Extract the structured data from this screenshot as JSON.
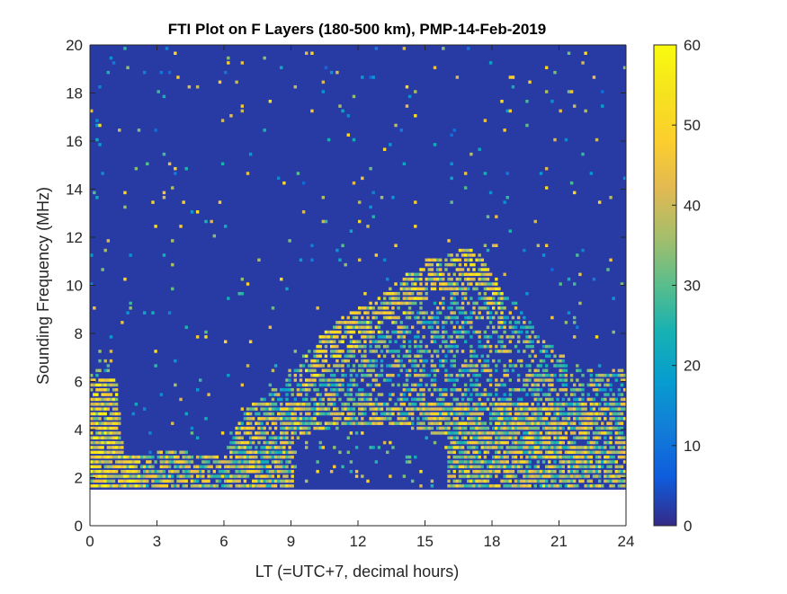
{
  "chart_data": {
    "type": "heatmap",
    "title": "FTI Plot on F Layers (180-500 km), PMP-14-Feb-2019",
    "xlabel": "LT (=UTC+7, decimal hours)",
    "ylabel": "Sounding Frequency (MHz)",
    "xlim": [
      0,
      24
    ],
    "ylim": [
      0,
      20
    ],
    "xticks": [
      "0",
      "3",
      "6",
      "9",
      "12",
      "15",
      "18",
      "21",
      "24"
    ],
    "yticks": [
      "0",
      "2",
      "4",
      "6",
      "8",
      "10",
      "12",
      "14",
      "16",
      "18",
      "20"
    ],
    "colorbar": {
      "lim": [
        0,
        60
      ],
      "ticks": [
        "0",
        "10",
        "20",
        "30",
        "40",
        "50",
        "60"
      ],
      "colormap": "parula"
    },
    "data_extent": {
      "x_range": [
        0,
        24
      ],
      "y_range": [
        1.5,
        20
      ]
    },
    "background_value": 2,
    "upper_edge_profile": {
      "hours": [
        0,
        0.5,
        1,
        1.5,
        2,
        3,
        4,
        5,
        6,
        7,
        8,
        9,
        10,
        11,
        12,
        13,
        14,
        15,
        16,
        17,
        17.5,
        18,
        19,
        20,
        21,
        22,
        23,
        24
      ],
      "max_freq_mhz": [
        6.4,
        6.6,
        7.3,
        3.0,
        2.9,
        3.0,
        3.2,
        2.8,
        3.0,
        4.8,
        5.6,
        6.5,
        7.5,
        8.5,
        9.0,
        9.5,
        10.3,
        11.0,
        11.3,
        11.5,
        11.2,
        10.5,
        9.3,
        8.0,
        7.2,
        6.5,
        6.3,
        6.6
      ]
    },
    "grid": false,
    "legend": "none"
  }
}
